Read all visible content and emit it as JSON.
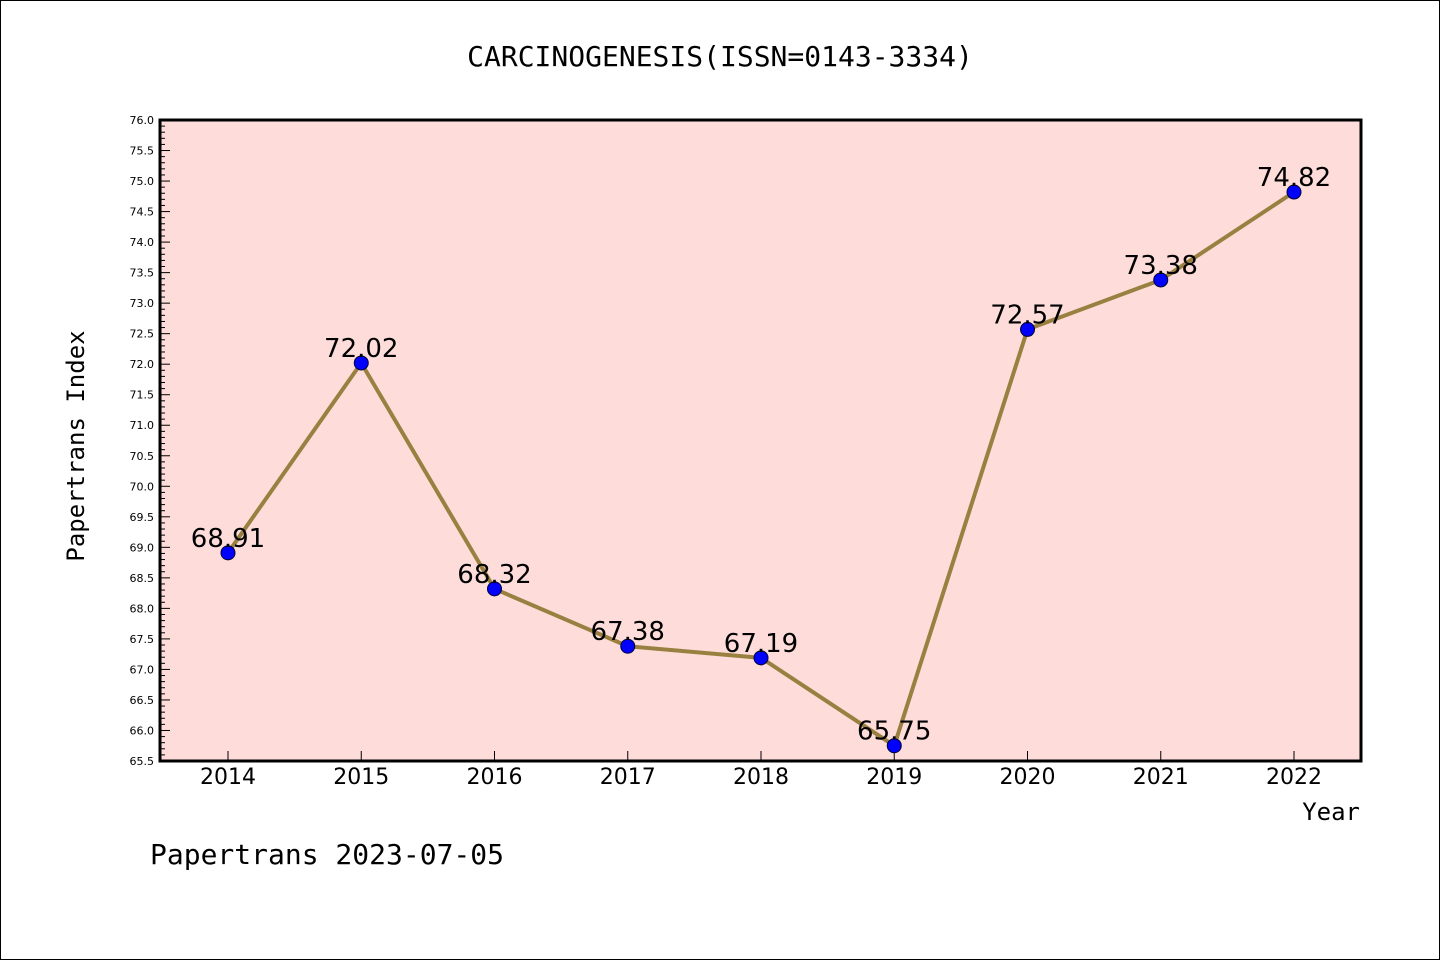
{
  "chart_data": {
    "type": "line",
    "title": "CARCINOGENESIS(ISSN=0143-3334)",
    "xlabel": "Year",
    "ylabel": "Papertrans Index",
    "categories": [
      "2014",
      "2015",
      "2016",
      "2017",
      "2018",
      "2019",
      "2020",
      "2021",
      "2022"
    ],
    "values": [
      68.91,
      72.02,
      68.32,
      67.38,
      67.19,
      65.75,
      72.57,
      73.38,
      74.82
    ],
    "data_labels": [
      "68.91",
      "72.02",
      "68.32",
      "67.38",
      "67.19",
      "65.75",
      "72.57",
      "73.38",
      "74.82"
    ],
    "ylim": [
      65.5,
      76.0
    ],
    "yticks": [
      "65.5",
      "66.0",
      "66.5",
      "67.0",
      "67.5",
      "68.0",
      "68.5",
      "69.0",
      "69.5",
      "70.0",
      "70.5",
      "71.0",
      "71.5",
      "72.0",
      "72.5",
      "73.0",
      "73.5",
      "74.0",
      "74.5",
      "75.0",
      "75.5",
      "76.0"
    ],
    "grid": false,
    "legend": "none",
    "colors": {
      "plot_background": "#fddcda",
      "line": "#9a8040",
      "marker": "#0000ff"
    }
  },
  "footer": "Papertrans 2023-07-05"
}
